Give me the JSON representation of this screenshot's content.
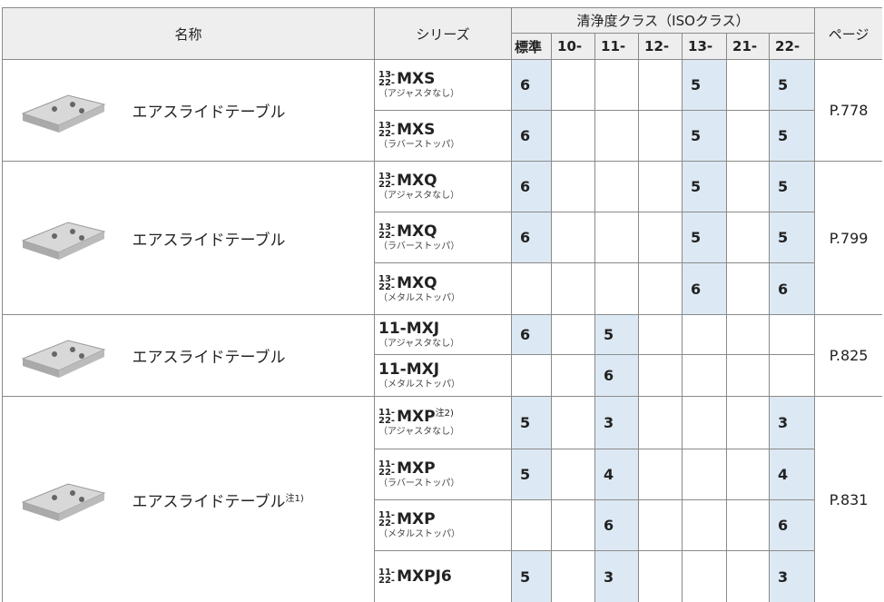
{
  "header": {
    "name": "名称",
    "series": "シリーズ",
    "cleanliness": "清浄度クラス（ISOクラス）",
    "page": "ページ",
    "classes": [
      "標準",
      "10-",
      "11-",
      "12-",
      "13-",
      "21-",
      "22-"
    ]
  },
  "groups": [
    {
      "name": "エアスライドテーブル",
      "page": "P.778",
      "rows": [
        {
          "prefix": [
            "13-",
            "22-"
          ],
          "model": "MXS",
          "sub": "（アジャスタなし）",
          "cells": [
            6,
            null,
            null,
            null,
            5,
            null,
            5
          ]
        },
        {
          "prefix": [
            "13-",
            "22-"
          ],
          "model": "MXS",
          "sub": "（ラバーストッパ）",
          "cells": [
            6,
            null,
            null,
            null,
            5,
            null,
            5
          ]
        }
      ]
    },
    {
      "name": "エアスライドテーブル",
      "page": "P.799",
      "rows": [
        {
          "prefix": [
            "13-",
            "22-"
          ],
          "model": "MXQ",
          "sub": "（アジャスタなし）",
          "cells": [
            6,
            null,
            null,
            null,
            5,
            null,
            5
          ]
        },
        {
          "prefix": [
            "13-",
            "22-"
          ],
          "model": "MXQ",
          "sub": "（ラバーストッパ）",
          "cells": [
            6,
            null,
            null,
            null,
            5,
            null,
            5
          ]
        },
        {
          "prefix": [
            "13-",
            "22-"
          ],
          "model": "MXQ",
          "sub": "（メタルストッパ）",
          "cells": [
            null,
            null,
            null,
            null,
            6,
            null,
            6
          ]
        }
      ]
    },
    {
      "name": "エアスライドテーブル",
      "page": "P.825",
      "rows": [
        {
          "model": "11-MXJ",
          "sub": "（アジャスタなし）",
          "cells": [
            6,
            null,
            5,
            null,
            null,
            null,
            null
          ]
        },
        {
          "model": "11-MXJ",
          "sub": "（メタルストッパ）",
          "cells": [
            null,
            null,
            6,
            null,
            null,
            null,
            null
          ]
        }
      ]
    },
    {
      "name": "エアスライドテーブル",
      "note": "注1)",
      "page": "P.831",
      "rows": [
        {
          "prefix": [
            "11-",
            "22-"
          ],
          "model": "MXP",
          "note": "注2)",
          "sub": "（アジャスタなし）",
          "cells": [
            5,
            null,
            3,
            null,
            null,
            null,
            3
          ]
        },
        {
          "prefix": [
            "11-",
            "22-"
          ],
          "model": "MXP",
          "sub": "（ラバーストッパ）",
          "cells": [
            5,
            null,
            4,
            null,
            null,
            null,
            4
          ]
        },
        {
          "prefix": [
            "11-",
            "22-"
          ],
          "model": "MXP",
          "sub": "（メタルストッパ）",
          "cells": [
            null,
            null,
            6,
            null,
            null,
            null,
            6
          ]
        },
        {
          "prefix": [
            "11-",
            "22-"
          ],
          "model": "MXPJ6",
          "cells": [
            5,
            null,
            3,
            null,
            null,
            null,
            3
          ]
        }
      ]
    }
  ]
}
